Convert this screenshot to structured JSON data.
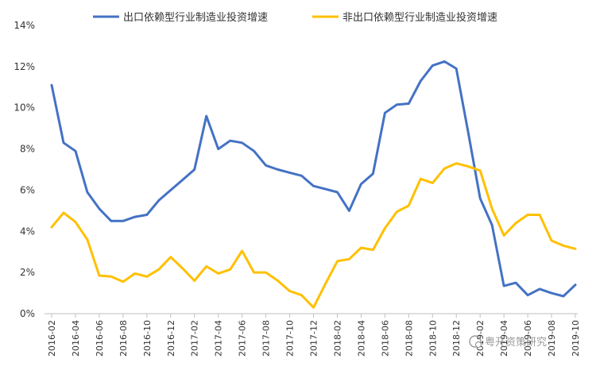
{
  "chart_data": {
    "type": "line",
    "ylim": [
      0,
      14
    ],
    "y_ticks": [
      "0%",
      "2%",
      "4%",
      "6%",
      "8%",
      "10%",
      "12%",
      "14%"
    ],
    "y_tick_values": [
      0,
      2,
      4,
      6,
      8,
      10,
      12,
      14
    ],
    "grid": false,
    "legend_position": "top",
    "x": [
      "2016-02",
      "2016-03",
      "2016-04",
      "2016-05",
      "2016-06",
      "2016-07",
      "2016-08",
      "2016-09",
      "2016-10",
      "2016-11",
      "2016-12",
      "2017-01",
      "2017-02",
      "2017-03",
      "2017-04",
      "2017-05",
      "2017-06",
      "2017-07",
      "2017-08",
      "2017-09",
      "2017-10",
      "2017-11",
      "2017-12",
      "2018-01",
      "2018-02",
      "2018-03",
      "2018-04",
      "2018-05",
      "2018-06",
      "2018-07",
      "2018-08",
      "2018-09",
      "2018-10",
      "2018-11",
      "2018-12",
      "2019-01",
      "2019-02",
      "2019-03",
      "2019-04",
      "2019-05",
      "2019-06",
      "2019-07",
      "2019-08",
      "2019-09",
      "2019-10"
    ],
    "x_tick_labels": [
      "2016-02",
      "2016-04",
      "2016-06",
      "2016-08",
      "2016-10",
      "2016-12",
      "2017-02",
      "2017-04",
      "2017-06",
      "2017-08",
      "2017-10",
      "2017-12",
      "2018-02",
      "2018-04",
      "2018-06",
      "2018-08",
      "2018-10",
      "2018-12",
      "2019-02",
      "2019-04",
      "2019-06",
      "2019-08",
      "2019-10"
    ],
    "series": [
      {
        "name": "出口依赖型行业制造业投资增速",
        "color": "#4472C4",
        "values": [
          11.1,
          8.3,
          7.9,
          5.9,
          5.1,
          4.5,
          4.5,
          4.7,
          4.8,
          5.5,
          6.0,
          6.5,
          7.0,
          9.6,
          8.0,
          8.4,
          8.3,
          7.9,
          7.2,
          7.0,
          6.85,
          6.7,
          6.2,
          6.05,
          5.9,
          5.0,
          6.3,
          6.8,
          9.75,
          10.15,
          10.2,
          11.3,
          12.05,
          12.25,
          11.9,
          8.8,
          5.6,
          4.3,
          1.35,
          1.5,
          0.9,
          1.2,
          1.0,
          0.85,
          1.4
        ]
      },
      {
        "name": "非出口依赖型行业制造业投资增速",
        "color": "#FFC000",
        "values": [
          4.2,
          4.9,
          4.45,
          3.6,
          1.85,
          1.8,
          1.55,
          1.95,
          1.8,
          2.15,
          2.75,
          2.2,
          1.6,
          2.3,
          1.95,
          2.15,
          3.05,
          2.0,
          2.0,
          1.6,
          1.1,
          0.9,
          0.3,
          1.45,
          2.55,
          2.65,
          3.2,
          3.1,
          4.15,
          4.95,
          5.25,
          6.55,
          6.35,
          7.05,
          7.3,
          7.15,
          6.95,
          5.1,
          3.8,
          4.4,
          4.8,
          4.8,
          3.55,
          3.3,
          3.15
        ]
      }
    ]
  },
  "watermark": {
    "text": "粤开资策研究"
  }
}
